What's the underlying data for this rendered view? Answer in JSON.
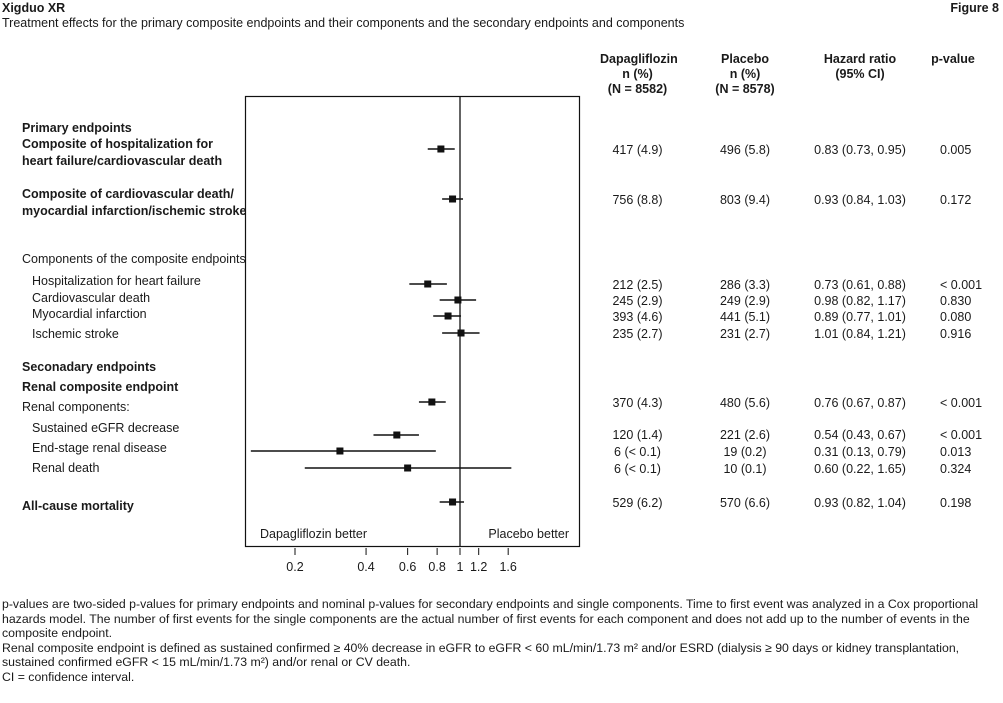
{
  "header": {
    "left_title": "Xigduo XR",
    "right_title": "Figure 8",
    "subtitle": "Treatment effects for the primary composite endpoints and their components and the secondary endpoints and components"
  },
  "columns": {
    "dapagliflozin": [
      "Dapagliflozin",
      "n (%)",
      "(N = 8582)"
    ],
    "placebo": [
      "Placebo",
      "n (%)",
      "(N = 8578)"
    ],
    "hazard_ratio": [
      "Hazard ratio",
      "(95% CI)"
    ],
    "p_value": [
      "p-value"
    ]
  },
  "section_labels": {
    "primary": "Primary endpoints",
    "components": "Components of the composite endpoints",
    "secondary": "Seconadary endpoints"
  },
  "axis": {
    "left_annotation": "Dapagliflozin better",
    "right_annotation": "Placebo better"
  },
  "chart_data": {
    "type": "forest",
    "xscale": "log",
    "xlim": [
      0.13,
      2.2
    ],
    "reference_line": 1,
    "x_ticks": [
      0.2,
      0.4,
      0.6,
      0.8,
      1,
      1.2,
      1.6
    ],
    "x_tick_labels": [
      "0.2",
      "0.4",
      "0.6",
      "0.8",
      "1",
      "1.2",
      "1.6"
    ],
    "rows": [
      {
        "label": [
          "Composite of hospitalization for",
          "heart failure/cardiovascular death"
        ],
        "bold": true,
        "dapa": "417 (4.9)",
        "placebo": "496 (5.8)",
        "hr_text": "0.83 (0.73, 0.95)",
        "p": "0.005",
        "hr": 0.83,
        "lo": 0.73,
        "hi": 0.95
      },
      {
        "label": [
          "Composite of cardiovascular death/",
          "myocardial infarction/ischemic stroke"
        ],
        "bold": true,
        "dapa": "756 (8.8)",
        "placebo": "803 (9.4)",
        "hr_text": "0.93 (0.84, 1.03)",
        "p": "0.172",
        "hr": 0.93,
        "lo": 0.84,
        "hi": 1.03
      },
      {
        "label": [
          "Hospitalization for heart failure"
        ],
        "bold": false,
        "dapa": "212 (2.5)",
        "placebo": "286 (3.3)",
        "hr_text": "0.73 (0.61, 0.88)",
        "p": "< 0.001",
        "hr": 0.73,
        "lo": 0.61,
        "hi": 0.88
      },
      {
        "label": [
          "Cardiovascular death"
        ],
        "bold": false,
        "dapa": "245 (2.9)",
        "placebo": "249 (2.9)",
        "hr_text": "0.98 (0.82, 1.17)",
        "p": "0.830",
        "hr": 0.98,
        "lo": 0.82,
        "hi": 1.17
      },
      {
        "label": [
          "Myocardial infarction"
        ],
        "bold": false,
        "dapa": "393 (4.6)",
        "placebo": "441 (5.1)",
        "hr_text": "0.89 (0.77, 1.01)",
        "p": "0.080",
        "hr": 0.89,
        "lo": 0.77,
        "hi": 1.01
      },
      {
        "label": [
          "Ischemic stroke"
        ],
        "bold": false,
        "dapa": "235 (2.7)",
        "placebo": "231 (2.7)",
        "hr_text": "1.01 (0.84, 1.21)",
        "p": "0.916",
        "hr": 1.01,
        "lo": 0.84,
        "hi": 1.21
      },
      {
        "label": [
          "Renal composite endpoint"
        ],
        "bold": true,
        "sublabel": "Renal components:",
        "dapa": "370 (4.3)",
        "placebo": "480 (5.6)",
        "hr_text": "0.76 (0.67, 0.87)",
        "p": "< 0.001",
        "hr": 0.76,
        "lo": 0.67,
        "hi": 0.87
      },
      {
        "label": [
          "Sustained eGFR decrease"
        ],
        "bold": false,
        "dapa": "120 (1.4)",
        "placebo": "221 (2.6)",
        "hr_text": "0.54 (0.43, 0.67)",
        "p": "< 0.001",
        "hr": 0.54,
        "lo": 0.43,
        "hi": 0.67
      },
      {
        "label": [
          "End-stage renal disease"
        ],
        "bold": false,
        "dapa": "6 (< 0.1)",
        "placebo": "19 (0.2)",
        "hr_text": "0.31 (0.13, 0.79)",
        "p": "0.013",
        "hr": 0.31,
        "lo": 0.13,
        "hi": 0.79
      },
      {
        "label": [
          "Renal death"
        ],
        "bold": false,
        "dapa": "6 (< 0.1)",
        "placebo": "10 (0.1)",
        "hr_text": "0.60 (0.22, 1.65)",
        "p": "0.324",
        "hr": 0.6,
        "lo": 0.22,
        "hi": 1.65
      },
      {
        "label": [
          "All-cause mortality"
        ],
        "bold": true,
        "dapa": "529 (6.2)",
        "placebo": "570 (6.6)",
        "hr_text": "0.93 (0.82, 1.04)",
        "p": "0.198",
        "hr": 0.93,
        "lo": 0.82,
        "hi": 1.04
      }
    ]
  },
  "footnotes": [
    "p-values are two-sided p-values for primary endpoints and nominal p-values for secondary endpoints and single components. Time to first event was analyzed in a Cox proportional hazards model. The number of first events for the single components are the actual number of first events for each component and does not add up to the number of events in the composite endpoint.",
    "Renal composite endpoint is defined as sustained confirmed ≥ 40% decrease in eGFR to eGFR < 60 mL/min/1.73 m² and/or ESRD (dialysis ≥ 90 days or kidney transplantation, sustained confirmed eGFR < 15 mL/min/1.73 m²) and/or renal or CV death.",
    "CI = confidence interval."
  ]
}
